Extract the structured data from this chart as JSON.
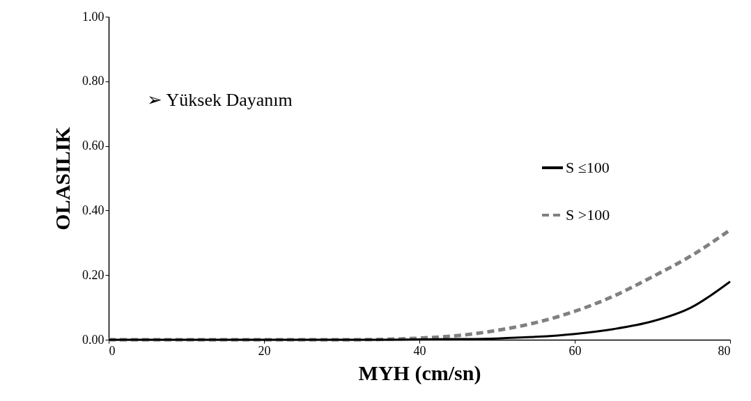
{
  "chart_data": {
    "type": "line",
    "xlabel": "MYH (cm/sn)",
    "ylabel": "OLASILIK",
    "x": [
      0,
      10,
      20,
      30,
      35,
      40,
      45,
      50,
      55,
      60,
      65,
      70,
      75,
      80
    ],
    "series": [
      {
        "name": "S ≤100",
        "color": "#000000",
        "line_style": "solid",
        "values": [
          0,
          0,
          0,
          0,
          0,
          0.001,
          0.002,
          0.004,
          0.009,
          0.018,
          0.033,
          0.057,
          0.1,
          0.18
        ]
      },
      {
        "name": "S >100",
        "color": "#808080",
        "line_style": "dashed",
        "values": [
          0,
          0,
          0,
          0,
          0.001,
          0.005,
          0.013,
          0.029,
          0.053,
          0.088,
          0.135,
          0.195,
          0.26,
          0.34
        ]
      }
    ],
    "xlim": [
      0,
      80
    ],
    "xticks": [
      0,
      20,
      40,
      60,
      80
    ],
    "ylim": [
      0,
      1
    ],
    "yticks": [
      {
        "value": 0,
        "label": "0.00"
      },
      {
        "value": 0.2,
        "label": "0.20"
      },
      {
        "value": 0.4,
        "label": "0.40"
      },
      {
        "value": 0.6,
        "label": "0.60"
      },
      {
        "value": 0.8,
        "label": "0.80"
      },
      {
        "value": 1,
        "label": "1.00"
      }
    ],
    "annotations": [
      {
        "text": "➢  Yüksek Dayanım"
      }
    ],
    "grid": false,
    "legend": "right"
  }
}
